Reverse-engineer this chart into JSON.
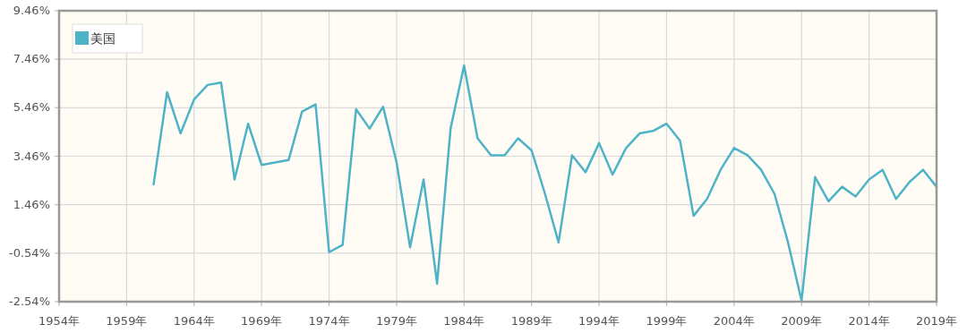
{
  "chart_data": {
    "type": "line",
    "x": [
      1961,
      1962,
      1963,
      1964,
      1965,
      1966,
      1967,
      1968,
      1969,
      1970,
      1971,
      1972,
      1973,
      1974,
      1975,
      1976,
      1977,
      1978,
      1979,
      1980,
      1981,
      1982,
      1983,
      1984,
      1985,
      1986,
      1987,
      1988,
      1989,
      1990,
      1991,
      1992,
      1993,
      1994,
      1995,
      1996,
      1997,
      1998,
      1999,
      2000,
      2001,
      2002,
      2003,
      2004,
      2005,
      2006,
      2007,
      2008,
      2009,
      2010,
      2011,
      2012,
      2013,
      2014,
      2015,
      2016,
      2017,
      2018,
      2019
    ],
    "series": [
      {
        "name": "美国",
        "color": "#4fb3c8",
        "values": [
          2.3,
          6.1,
          4.4,
          5.8,
          6.4,
          6.5,
          2.5,
          4.8,
          3.1,
          3.2,
          3.3,
          5.3,
          5.6,
          -0.5,
          -0.2,
          5.4,
          4.6,
          5.5,
          3.2,
          -0.3,
          2.5,
          -1.8,
          4.6,
          7.2,
          4.2,
          3.5,
          3.5,
          4.2,
          3.7,
          1.9,
          -0.1,
          3.5,
          2.8,
          4.0,
          2.7,
          3.8,
          4.4,
          4.5,
          4.8,
          4.1,
          1.0,
          1.7,
          2.9,
          3.8,
          3.5,
          2.9,
          1.9,
          -0.1,
          -2.5,
          2.6,
          1.6,
          2.2,
          1.8,
          2.5,
          2.9,
          1.7,
          2.4,
          2.9,
          2.2
        ]
      }
    ],
    "xlim": [
      1954,
      2019
    ],
    "ylim": [
      -2.54,
      9.46
    ],
    "xticks": [
      {
        "value": 1954,
        "label": "1954年"
      },
      {
        "value": 1959,
        "label": "1959年"
      },
      {
        "value": 1964,
        "label": "1964年"
      },
      {
        "value": 1969,
        "label": "1969年"
      },
      {
        "value": 1974,
        "label": "1974年"
      },
      {
        "value": 1979,
        "label": "1979年"
      },
      {
        "value": 1984,
        "label": "1984年"
      },
      {
        "value": 1989,
        "label": "1989年"
      },
      {
        "value": 1994,
        "label": "1994年"
      },
      {
        "value": 1999,
        "label": "1999年"
      },
      {
        "value": 2004,
        "label": "2004年"
      },
      {
        "value": 2009,
        "label": "2009年"
      },
      {
        "value": 2014,
        "label": "2014年"
      },
      {
        "value": 2019,
        "label": "2019年"
      }
    ],
    "yticks": [
      {
        "value": -2.54,
        "label": "-2.54%"
      },
      {
        "value": -0.54,
        "label": "-0.54%"
      },
      {
        "value": 1.46,
        "label": "1.46%"
      },
      {
        "value": 3.46,
        "label": "3.46%"
      },
      {
        "value": 5.46,
        "label": "5.46%"
      },
      {
        "value": 7.46,
        "label": "7.46%"
      },
      {
        "value": 9.46,
        "label": "9.46%"
      }
    ],
    "grid": true,
    "legend": "top left",
    "marker": "none",
    "line_style": "solid"
  }
}
